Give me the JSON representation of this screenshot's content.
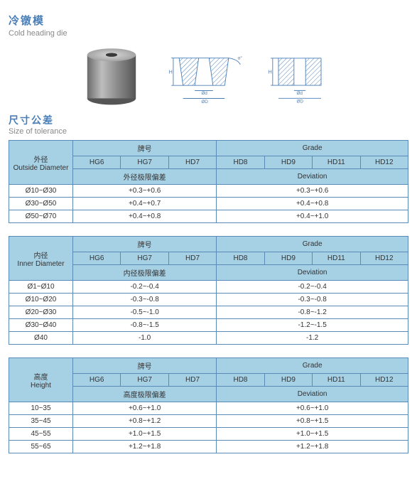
{
  "title": {
    "cn": "冷镦模",
    "en": "Cold heading die"
  },
  "section": {
    "cn": "尺寸公差",
    "en": "Size of tolerance"
  },
  "colors": {
    "header_bg": "#a6d0e4",
    "border": "#5a8ab8",
    "heading": "#4a7fb8",
    "sub": "#888"
  },
  "grades_cn": "牌号",
  "grades_en": "Grade",
  "grade_cols": [
    "HG6",
    "HG7",
    "HD7",
    "HD8",
    "HD9",
    "HD11",
    "HD12"
  ],
  "tables": [
    {
      "head_cn": "外径",
      "head_en": "Outside Diameter",
      "dev_cn": "外径极限偏差",
      "dev_en": "Deviation",
      "rows": [
        {
          "label": "Ø10~Ø30",
          "left": "+0.3~+0.6",
          "right": "+0.3~+0.6"
        },
        {
          "label": "Ø30~Ø50",
          "left": "+0.4~+0.7",
          "right": "+0.4~+0.8"
        },
        {
          "label": "Ø50~Ø70",
          "left": "+0.4~+0.8",
          "right": "+0.4~+1.0"
        }
      ]
    },
    {
      "head_cn": "内径",
      "head_en": "Inner Diameter",
      "dev_cn": "内径极限偏差",
      "dev_en": "Deviation",
      "rows": [
        {
          "label": "Ø1~Ø10",
          "left": "-0.2~-0.4",
          "right": "-0.2~-0.4"
        },
        {
          "label": "Ø10~Ø20",
          "left": "-0.3~-0.8",
          "right": "-0.3~-0.8"
        },
        {
          "label": "Ø20~Ø30",
          "left": "-0.5~-1.0",
          "right": "-0.8~-1.2"
        },
        {
          "label": "Ø30~Ø40",
          "left": "-0.8~-1.5",
          "right": "-1.2~-1.5"
        },
        {
          "label": "Ø40",
          "left": "-1.0",
          "right": "-1.2"
        }
      ]
    },
    {
      "head_cn": "高度",
      "head_en": "Height",
      "dev_cn": "高度极限偏差",
      "dev_en": "Deviation",
      "rows": [
        {
          "label": "10~35",
          "left": "+0.6~+1.0",
          "right": "+0.6~+1.0"
        },
        {
          "label": "35~45",
          "left": "+0.8~+1.2",
          "right": "+0.8~+1.5"
        },
        {
          "label": "45~55",
          "left": "+1.0~+1.5",
          "right": "+1.0~+1.5"
        },
        {
          "label": "55~65",
          "left": "+1.2~+1.8",
          "right": "+1.2~+1.8"
        }
      ]
    }
  ]
}
